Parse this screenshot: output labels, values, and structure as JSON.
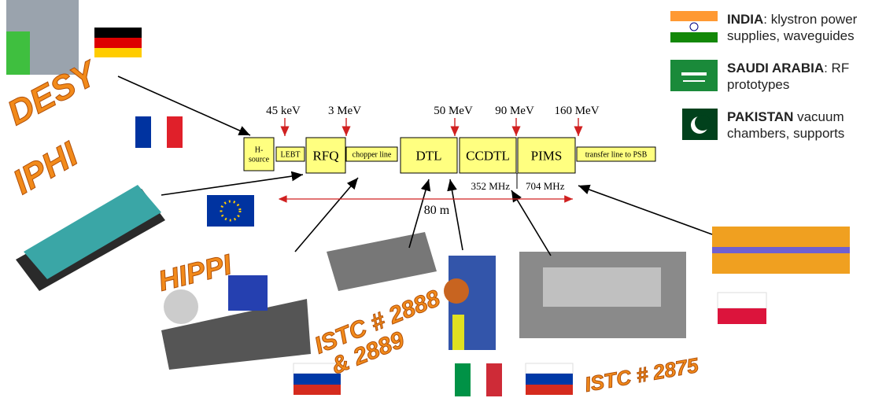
{
  "blocks": [
    {
      "lines": [
        "H-",
        "source"
      ]
    },
    {
      "lines": [
        "LEBT"
      ]
    },
    {
      "lines": [
        "RFQ"
      ]
    },
    {
      "lines": [
        "chopper line"
      ]
    },
    {
      "lines": [
        "DTL"
      ]
    },
    {
      "lines": [
        "CCDTL"
      ]
    },
    {
      "lines": [
        "PIMS"
      ]
    },
    {
      "lines": [
        "transfer line to PSB"
      ]
    }
  ],
  "energies": [
    "45 keV",
    "3 MeV",
    "50 MeV",
    "90 MeV",
    "160 MeV"
  ],
  "frequencies": [
    "352 MHz",
    "704 MHz"
  ],
  "length": "80 m",
  "labs": [
    {
      "lines": [
        "DESY"
      ]
    },
    {
      "lines": [
        "IPHI"
      ]
    },
    {
      "lines": [
        "HIPPI"
      ]
    },
    {
      "lines": [
        "ISTC # 2888",
        "& 2889"
      ]
    },
    {
      "lines": [
        "ISTC # 2875"
      ]
    }
  ],
  "legend": [
    {
      "country": "INDIA",
      "text": ": klystron power supplies, waveguides"
    },
    {
      "country": "SAUDI ARABIA",
      "text": ": RF prototypes"
    },
    {
      "country": "PAKISTAN",
      "text": " vacuum chambers, supports"
    }
  ]
}
